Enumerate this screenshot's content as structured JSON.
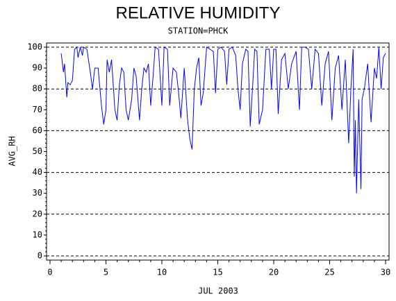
{
  "chart_data": {
    "type": "line",
    "title": "RELATIVE HUMIDITY",
    "subtitle": "STATION=PHCK",
    "x_label": "JUL 2003",
    "y_label": "AVG_RH",
    "x": [
      1.0,
      1.2,
      1.3,
      1.5,
      1.6,
      1.8,
      2.0,
      2.2,
      2.4,
      2.5,
      2.7,
      2.9,
      3.0,
      3.3,
      3.6,
      3.8,
      4.0,
      4.3,
      4.6,
      4.8,
      5.0,
      5.1,
      5.3,
      5.5,
      5.8,
      6.0,
      6.2,
      6.4,
      6.6,
      6.8,
      7.0,
      7.3,
      7.5,
      7.7,
      8.0,
      8.2,
      8.4,
      8.6,
      8.8,
      9.0,
      9.2,
      9.4,
      9.7,
      10.0,
      10.2,
      10.5,
      10.7,
      11.0,
      11.3,
      11.5,
      11.7,
      12.0,
      12.3,
      12.5,
      12.7,
      12.9,
      13.1,
      13.3,
      13.5,
      13.7,
      14.0,
      14.3,
      14.6,
      14.8,
      15.0,
      15.3,
      15.6,
      15.8,
      16.0,
      16.3,
      16.6,
      16.8,
      17.0,
      17.2,
      17.5,
      17.7,
      17.9,
      18.1,
      18.3,
      18.5,
      18.7,
      19.0,
      19.3,
      19.6,
      19.8,
      20.0,
      20.2,
      20.4,
      20.7,
      21.0,
      21.3,
      21.6,
      22.0,
      22.3,
      22.5,
      22.8,
      23.1,
      23.4,
      23.7,
      24.0,
      24.3,
      24.6,
      24.9,
      25.2,
      25.5,
      25.8,
      26.1,
      26.4,
      26.7,
      26.9,
      27.1,
      27.2,
      27.3,
      27.4,
      27.6,
      27.8,
      27.9,
      28.1,
      28.4,
      28.7,
      29.0,
      29.2,
      29.4,
      29.6,
      29.8,
      30.0
    ],
    "series": [
      {
        "name": "AVG_RH",
        "color": "#0000ff",
        "values": [
          97,
          88,
          92,
          76,
          83,
          82,
          84,
          99,
          100,
          95,
          100,
          96,
          100,
          99,
          88,
          80,
          90,
          90,
          72,
          63,
          70,
          94,
          88,
          94,
          70,
          65,
          82,
          90,
          88,
          70,
          65,
          75,
          90,
          86,
          65,
          80,
          90,
          88,
          92,
          72,
          85,
          100,
          99,
          72,
          100,
          99,
          72,
          90,
          88,
          78,
          66,
          90,
          65,
          56,
          51,
          80,
          90,
          95,
          72,
          78,
          100,
          99,
          98,
          78,
          99,
          100,
          98,
          82,
          99,
          100,
          96,
          80,
          70,
          92,
          99,
          98,
          62,
          80,
          99,
          98,
          63,
          70,
          99,
          99,
          80,
          99,
          99,
          68,
          94,
          97,
          80,
          92,
          98,
          70,
          100,
          100,
          99,
          80,
          99,
          97,
          72,
          92,
          98,
          65,
          90,
          96,
          70,
          94,
          54,
          80,
          99,
          38,
          65,
          30,
          75,
          32,
          75,
          80,
          92,
          64,
          90,
          85,
          100,
          80,
          95,
          97
        ]
      }
    ],
    "xlim": [
      0,
      30
    ],
    "xticks": [
      0,
      5,
      10,
      15,
      20,
      25,
      30
    ],
    "ylim": [
      0,
      100
    ],
    "yticks": [
      0,
      10,
      20,
      30,
      40,
      50,
      60,
      70,
      80,
      90,
      100
    ],
    "grid_step": 20
  }
}
